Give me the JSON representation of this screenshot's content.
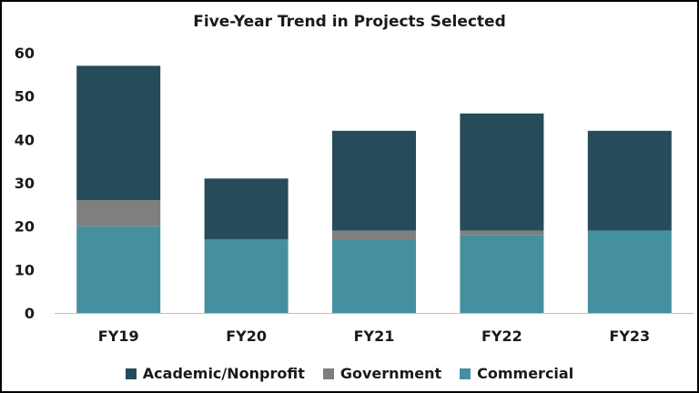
{
  "chart_data": {
    "type": "bar",
    "stacked": true,
    "title": "Five-Year Trend in Projects Selected",
    "xlabel": "",
    "ylabel": "",
    "categories": [
      "FY19",
      "FY20",
      "FY21",
      "FY22",
      "FY23"
    ],
    "ylim": [
      0,
      60
    ],
    "yticks": [
      "0",
      "10",
      "20",
      "30",
      "40",
      "50",
      "60"
    ],
    "grid": false,
    "legend_position": "bottom",
    "series": [
      {
        "name": "Commercial",
        "color": "#45909f",
        "values": [
          20,
          17,
          17,
          18,
          19
        ]
      },
      {
        "name": "Government",
        "color": "#7f7f7f",
        "values": [
          6,
          0,
          2,
          1,
          0
        ]
      },
      {
        "name": "Academic/Nonprofit",
        "color": "#264b5a",
        "values": [
          31,
          14,
          23,
          27,
          23
        ]
      }
    ],
    "legend_order": [
      "Academic/Nonprofit",
      "Government",
      "Commercial"
    ]
  }
}
